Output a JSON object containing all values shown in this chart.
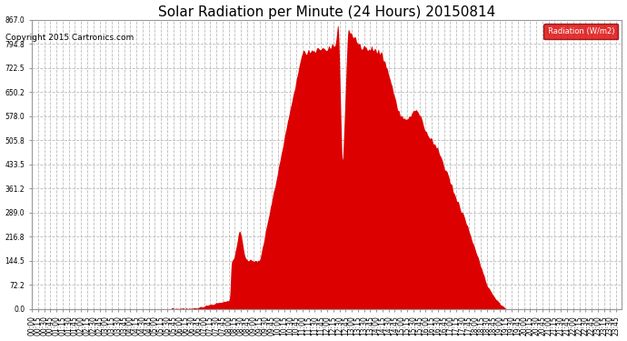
{
  "title": "Solar Radiation per Minute (24 Hours) 20150814",
  "copyright": "Copyright 2015 Cartronics.com",
  "legend_label": "Radiation (W/m2)",
  "legend_bg": "#dd0000",
  "legend_text_color": "#ffffff",
  "fill_color": "#dd0000",
  "line_color": "#dd0000",
  "bg_color": "#ffffff",
  "plot_bg_color": "#ffffff",
  "grid_color": "#aaaaaa",
  "grid_style": "--",
  "ylim": [
    0.0,
    867.0
  ],
  "yticks": [
    0.0,
    72.2,
    144.5,
    216.8,
    289.0,
    361.2,
    433.5,
    505.8,
    578.0,
    650.2,
    722.5,
    794.8,
    867.0
  ],
  "title_fontsize": 11,
  "copyright_fontsize": 6.5,
  "tick_fontsize": 5.5,
  "num_minutes": 1440
}
